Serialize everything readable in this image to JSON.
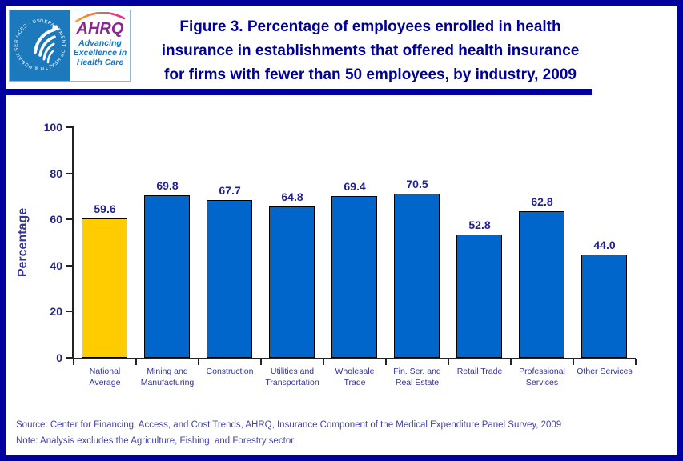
{
  "page": {
    "background": "#FFFFFF",
    "frame_color": "#00009E"
  },
  "header": {
    "logo": {
      "seal_text": "DEPARTMENT OF HEALTH & HUMAN SERVICES · USA",
      "agency": "AHRQ",
      "tagline_lines": [
        "Advancing",
        "Excellence in",
        "Health Care"
      ],
      "left_panel_color": "#1B79BC",
      "agency_color": "#86288F",
      "tagline_color": "#1B75BC"
    },
    "title_lines": [
      "Figure 3. Percentage of employees enrolled in health",
      "insurance in establishments that offered health insurance",
      "for firms with fewer than 50 employees, by industry, 2009"
    ],
    "title_color": "#000099"
  },
  "chart_data": {
    "type": "bar",
    "title": "Figure 3. Percentage of employees enrolled in health insurance in establishments that offered health insurance for firms with fewer than 50 employees, by industry, 2009",
    "xlabel": "",
    "ylabel": "Percentage",
    "ylim": [
      0,
      100
    ],
    "yticks": [
      0,
      20,
      40,
      60,
      80,
      100
    ],
    "grid": false,
    "legend": false,
    "categories": [
      "National\nAverage",
      "Mining and\nManufacturing",
      "Construction",
      "Utilities and\nTransportation",
      "Wholesale\nTrade",
      "Fin. Ser. and\nReal Estate",
      "Retail Trade",
      "Professional\nServices",
      "Other Services"
    ],
    "values": [
      59.6,
      69.8,
      67.7,
      64.8,
      69.4,
      70.5,
      52.8,
      62.8,
      44.0
    ],
    "value_label_decimals": 1,
    "highlight_index": 0,
    "bar_color_highlight": "#FFCC00",
    "bar_color_default": "#0066CC",
    "bar_border_color": "#000000",
    "value_label_color": "#22228E",
    "tick_label_color": "#22228E",
    "category_label_color": "#333399"
  },
  "footer": {
    "source": "Source: Center for Financing, Access, and Cost Trends, AHRQ, Insurance Component of the Medical Expenditure Panel Survey, 2009",
    "note": "Note: Analysis excludes the Agriculture, Fishing, and Forestry sector."
  }
}
